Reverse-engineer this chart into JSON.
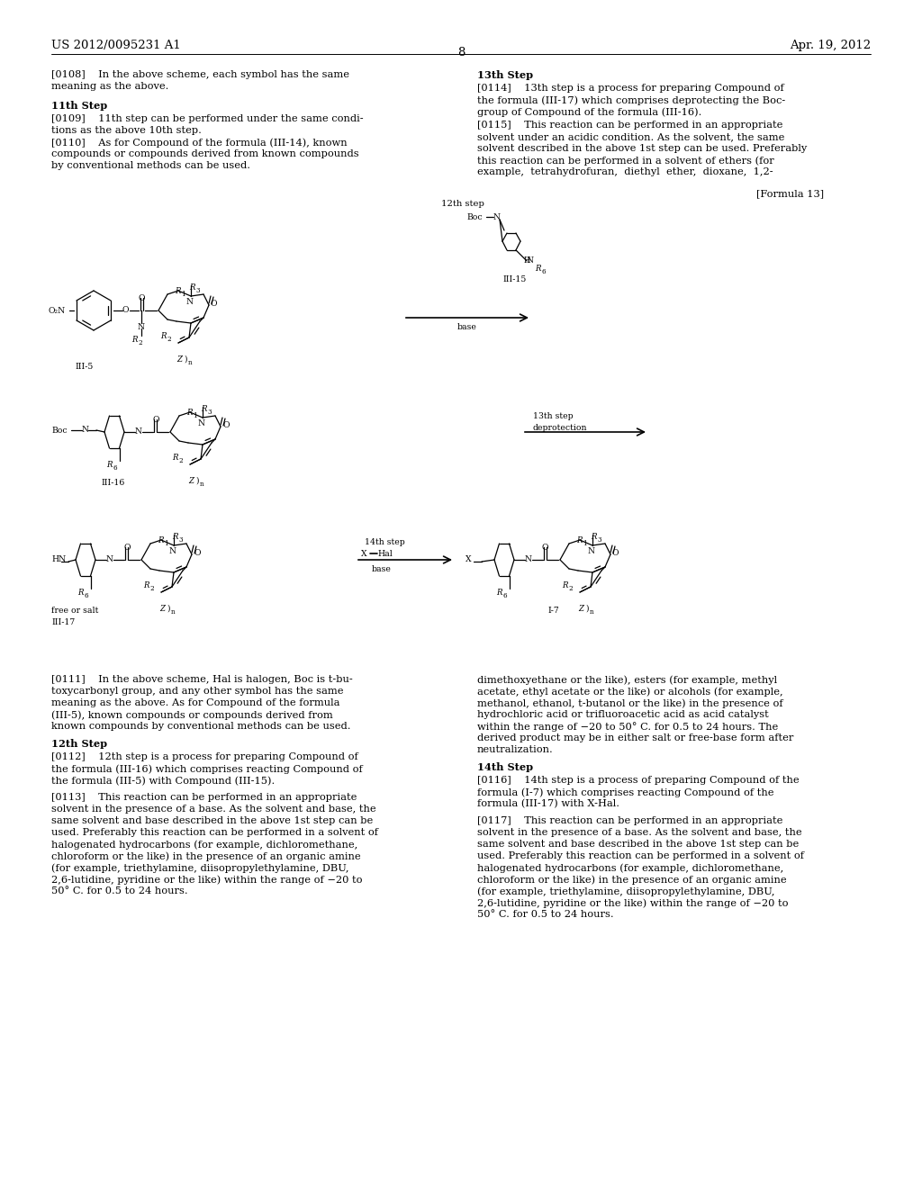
{
  "page_num": "8",
  "patent_num": "US 2012/0095231 A1",
  "patent_date": "Apr. 19, 2012",
  "formula_label": "[Formula 13]",
  "background": "#ffffff",
  "text_color": "#000000",
  "body_font_size": 8.2,
  "header_font_size": 9.0
}
